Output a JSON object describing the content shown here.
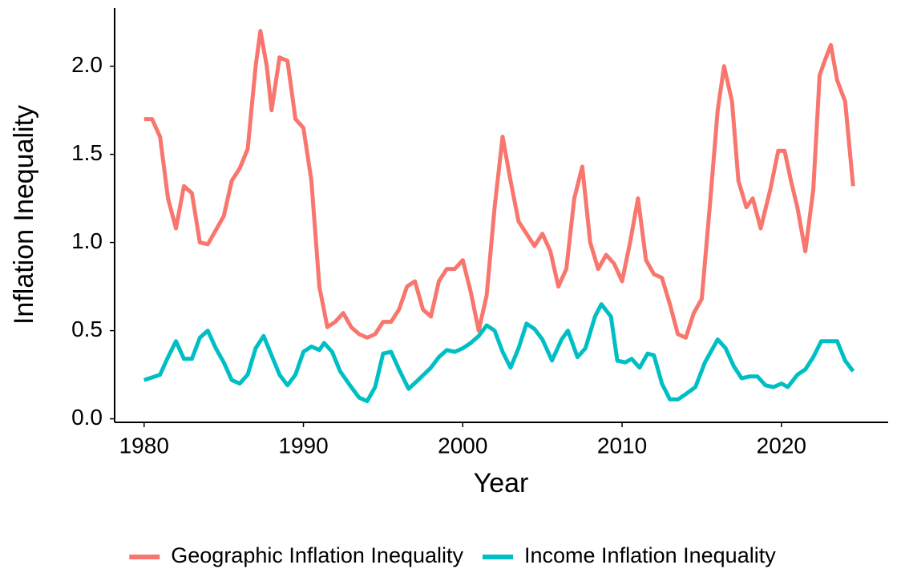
{
  "chart_data": {
    "type": "line",
    "xlabel": "Year",
    "ylabel": "Inflation Inequality",
    "xlim": [
      1978.15,
      2026.7
    ],
    "ylim": [
      -0.02,
      2.33
    ],
    "xticks": [
      1980,
      1990,
      2000,
      2010,
      2020
    ],
    "yticks": [
      {
        "value": 0,
        "label": "0.0"
      },
      0.5,
      {
        "value": 1,
        "label": "1.0"
      },
      1.5,
      {
        "value": 2,
        "label": "2.0"
      }
    ],
    "grid": false,
    "legend": "bottom",
    "series": [
      {
        "name": "Geographic Inflation Inequality",
        "color": "#f8766d",
        "x": [
          1980.0,
          1980.5,
          1981.0,
          1981.5,
          1982.0,
          1982.5,
          1983.0,
          1983.5,
          1984.0,
          1984.5,
          1985.0,
          1985.5,
          1986.0,
          1986.5,
          1987.0,
          1987.3,
          1987.7,
          1988.0,
          1988.5,
          1989.0,
          1989.5,
          1990.0,
          1990.5,
          1991.0,
          1991.5,
          1992.0,
          1992.5,
          1993.0,
          1993.5,
          1994.0,
          1994.5,
          1995.0,
          1995.5,
          1996.0,
          1996.5,
          1997.0,
          1997.5,
          1998.0,
          1998.5,
          1999.0,
          1999.5,
          2000.0,
          2000.5,
          2001.0,
          2001.5,
          2002.0,
          2002.5,
          2003.0,
          2003.5,
          2004.0,
          2004.5,
          2005.0,
          2005.5,
          2006.0,
          2006.5,
          2007.0,
          2007.5,
          2008.0,
          2008.5,
          2009.0,
          2009.5,
          2010.0,
          2010.5,
          2011.0,
          2011.5,
          2012.0,
          2012.5,
          2013.0,
          2013.5,
          2014.0,
          2014.5,
          2015.0,
          2015.5,
          2016.0,
          2016.4,
          2016.9,
          2017.3,
          2017.8,
          2018.2,
          2018.7,
          2019.3,
          2019.8,
          2020.2,
          2020.6,
          2021.0,
          2021.5,
          2022.0,
          2022.4,
          2022.8,
          2023.1,
          2023.5,
          2024.0,
          2024.5
        ],
        "values": [
          1.7,
          1.7,
          1.6,
          1.25,
          1.08,
          1.32,
          1.28,
          1.0,
          0.99,
          1.07,
          1.15,
          1.35,
          1.42,
          1.53,
          2.0,
          2.2,
          2.0,
          1.75,
          2.05,
          2.03,
          1.7,
          1.65,
          1.35,
          0.75,
          0.52,
          0.55,
          0.6,
          0.52,
          0.48,
          0.46,
          0.48,
          0.55,
          0.55,
          0.62,
          0.75,
          0.78,
          0.62,
          0.58,
          0.78,
          0.85,
          0.85,
          0.9,
          0.72,
          0.5,
          0.7,
          1.2,
          1.6,
          1.35,
          1.12,
          1.05,
          0.98,
          1.05,
          0.95,
          0.75,
          0.85,
          1.25,
          1.43,
          1.0,
          0.85,
          0.93,
          0.88,
          0.78,
          1.0,
          1.25,
          0.9,
          0.82,
          0.8,
          0.65,
          0.48,
          0.46,
          0.6,
          0.68,
          1.2,
          1.75,
          2.0,
          1.8,
          1.35,
          1.2,
          1.25,
          1.08,
          1.3,
          1.52,
          1.52,
          1.35,
          1.2,
          0.95,
          1.3,
          1.95,
          2.05,
          2.12,
          1.92,
          1.8,
          1.32
        ]
      },
      {
        "name": "Income Inflation Inequality",
        "color": "#00bfc4",
        "x": [
          1980.0,
          1981.0,
          1981.5,
          1982.0,
          1982.5,
          1983.0,
          1983.5,
          1984.0,
          1984.5,
          1985.0,
          1985.5,
          1986.0,
          1986.5,
          1987.0,
          1987.5,
          1988.0,
          1988.5,
          1989.0,
          1989.5,
          1990.0,
          1990.5,
          1991.0,
          1991.3,
          1991.8,
          1992.3,
          1993.0,
          1993.5,
          1994.0,
          1994.5,
          1995.0,
          1995.5,
          1996.0,
          1996.6,
          1997.2,
          1998.0,
          1998.5,
          1999.0,
          1999.5,
          2000.0,
          2000.5,
          2001.0,
          2001.5,
          2002.0,
          2002.5,
          2003.0,
          2003.5,
          2004.0,
          2004.5,
          2005.0,
          2005.6,
          2006.2,
          2006.6,
          2007.2,
          2007.7,
          2008.3,
          2008.7,
          2009.3,
          2009.7,
          2010.2,
          2010.6,
          2011.1,
          2011.6,
          2012.0,
          2012.5,
          2013.0,
          2013.5,
          2014.0,
          2014.6,
          2015.2,
          2016.0,
          2016.5,
          2017.0,
          2017.5,
          2018.0,
          2018.5,
          2019.0,
          2019.5,
          2020.0,
          2020.4,
          2021.0,
          2021.5,
          2022.0,
          2022.5,
          2023.0,
          2023.5,
          2024.0,
          2024.5
        ],
        "values": [
          0.22,
          0.25,
          0.35,
          0.44,
          0.34,
          0.34,
          0.46,
          0.5,
          0.4,
          0.32,
          0.22,
          0.2,
          0.25,
          0.4,
          0.47,
          0.36,
          0.25,
          0.19,
          0.25,
          0.38,
          0.41,
          0.39,
          0.43,
          0.38,
          0.27,
          0.18,
          0.12,
          0.1,
          0.18,
          0.37,
          0.38,
          0.28,
          0.17,
          0.22,
          0.29,
          0.35,
          0.39,
          0.38,
          0.4,
          0.43,
          0.47,
          0.53,
          0.5,
          0.38,
          0.29,
          0.4,
          0.54,
          0.51,
          0.45,
          0.33,
          0.45,
          0.5,
          0.35,
          0.4,
          0.58,
          0.65,
          0.58,
          0.33,
          0.32,
          0.34,
          0.29,
          0.37,
          0.36,
          0.2,
          0.11,
          0.11,
          0.14,
          0.18,
          0.32,
          0.45,
          0.4,
          0.3,
          0.23,
          0.24,
          0.24,
          0.19,
          0.18,
          0.2,
          0.18,
          0.25,
          0.28,
          0.35,
          0.44,
          0.44,
          0.44,
          0.33,
          0.27
        ]
      }
    ]
  }
}
